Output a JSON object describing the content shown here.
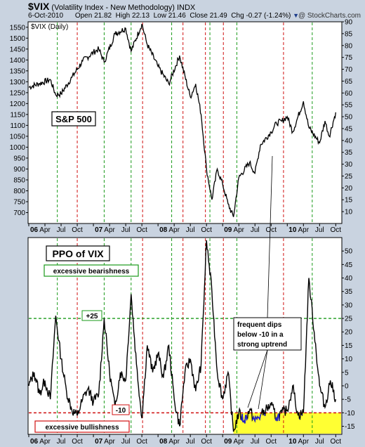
{
  "header": {
    "symbol": "$VIX",
    "name": "(Volatility Index - New Methodology)",
    "exchange": "INDX",
    "date": "6-Oct-2010",
    "open_label": "Open",
    "open": "21.82",
    "high_label": "High",
    "high": "22.13",
    "low_label": "Low",
    "low": "21.46",
    "close_label": "Close",
    "close": "21.49",
    "chg_label": "Chg",
    "chg": "-0.27 (-1.24%)"
  },
  "watermark": "@ StockCharts.com",
  "colors": {
    "background": "#c9d3e0",
    "panel": "#ffffff",
    "green_line": "#1a9a1a",
    "red_line": "#d01010",
    "highlight": "#ffff33",
    "vix_dips": "#2222cc"
  },
  "chart_data": [
    {
      "type": "line",
      "panel_label": "$VIX (Daily)",
      "annotation": "S&P 500",
      "left_axis_ticks": [
        700,
        750,
        800,
        850,
        900,
        950,
        1000,
        1050,
        1100,
        1150,
        1200,
        1250,
        1300,
        1350,
        1400,
        1450,
        1500,
        1550
      ],
      "right_axis_ticks": [
        10,
        15,
        20,
        25,
        30,
        35,
        40,
        45,
        50,
        55,
        60,
        65,
        70,
        75,
        80,
        85,
        90
      ],
      "left_ylim": [
        650,
        1575
      ],
      "right_ylim": [
        5,
        90
      ],
      "x_ticks": [
        "06",
        "Apr",
        "Jul",
        "Oct",
        "07",
        "Apr",
        "Jul",
        "Oct",
        "08",
        "Apr",
        "Jul",
        "Oct",
        "09",
        "Apr",
        "Jul",
        "Oct",
        "10",
        "Apr",
        "Jul",
        "Oct"
      ],
      "series": [
        {
          "points": [
            [
              "2006-01",
              1275
            ],
            [
              "2006-03",
              1292
            ],
            [
              "2006-05",
              1310
            ],
            [
              "2006-06",
              1240
            ],
            [
              "2006-07",
              1245
            ],
            [
              "2006-09",
              1320
            ],
            [
              "2006-11",
              1395
            ],
            [
              "2007-01",
              1435
            ],
            [
              "2007-02",
              1450
            ],
            [
              "2007-03",
              1390
            ],
            [
              "2007-05",
              1520
            ],
            [
              "2007-07",
              1545
            ],
            [
              "2007-08",
              1440
            ],
            [
              "2007-10",
              1565
            ],
            [
              "2007-11",
              1470
            ],
            [
              "2008-01",
              1370
            ],
            [
              "2008-03",
              1290
            ],
            [
              "2008-05",
              1420
            ],
            [
              "2008-07",
              1230
            ],
            [
              "2008-08",
              1290
            ],
            [
              "2008-09",
              1150
            ],
            [
              "2008-10",
              900
            ],
            [
              "2008-11",
              760
            ],
            [
              "2008-12",
              900
            ],
            [
              "2009-01",
              830
            ],
            [
              "2009-02",
              740
            ],
            [
              "2009-03",
              680
            ],
            [
              "2009-04",
              860
            ],
            [
              "2009-06",
              930
            ],
            [
              "2009-07",
              880
            ],
            [
              "2009-08",
              1010
            ],
            [
              "2009-10",
              1070
            ],
            [
              "2009-11",
              1110
            ],
            [
              "2009-12",
              1120
            ],
            [
              "2010-01",
              1140
            ],
            [
              "2010-02",
              1070
            ],
            [
              "2010-04",
              1210
            ],
            [
              "2010-05",
              1090
            ],
            [
              "2010-07",
              1020
            ],
            [
              "2010-08",
              1120
            ],
            [
              "2010-08-25",
              1050
            ],
            [
              "2010-10",
              1160
            ]
          ]
        }
      ]
    },
    {
      "type": "line",
      "title": "PPO of VIX",
      "y_ticks": [
        -15,
        -10,
        -5,
        0,
        5,
        10,
        15,
        20,
        25,
        30,
        35,
        40,
        45,
        50
      ],
      "ylim": [
        -18,
        55
      ],
      "x_ticks": [
        "06",
        "Apr",
        "Jul",
        "Oct",
        "07",
        "Apr",
        "Jul",
        "Oct",
        "08",
        "Apr",
        "Jul",
        "Oct",
        "09",
        "Apr",
        "Jul",
        "Oct",
        "10",
        "Apr",
        "Jul",
        "Oct"
      ],
      "upper_threshold": 25,
      "upper_label": "+25",
      "lower_threshold": -10,
      "lower_label": "-10",
      "upper_annotation": "excessive bearishness",
      "lower_annotation": "excessive bullishness",
      "callout": [
        "frequent dips",
        "below -10 in a",
        "strong uptrend"
      ],
      "series": [
        {
          "points": [
            [
              "2006-01",
              0
            ],
            [
              "2006-02",
              5
            ],
            [
              "2006-03",
              -3
            ],
            [
              "2006-04",
              2
            ],
            [
              "2006-05",
              -5
            ],
            [
              "2006-06",
              26
            ],
            [
              "2006-07",
              10
            ],
            [
              "2006-08",
              -2
            ],
            [
              "2006-09",
              -9
            ],
            [
              "2006-10",
              -11
            ],
            [
              "2006-11",
              -5
            ],
            [
              "2006-12",
              -1
            ],
            [
              "2007-01",
              -6
            ],
            [
              "2007-02",
              -3
            ],
            [
              "2007-03",
              25
            ],
            [
              "2007-04",
              5
            ],
            [
              "2007-05",
              -8
            ],
            [
              "2007-06",
              5
            ],
            [
              "2007-07",
              2
            ],
            [
              "2007-08",
              34
            ],
            [
              "2007-09",
              8
            ],
            [
              "2007-10",
              -12
            ],
            [
              "2007-11",
              15
            ],
            [
              "2007-12",
              5
            ],
            [
              "2008-01",
              12
            ],
            [
              "2008-02",
              3
            ],
            [
              "2008-03",
              15
            ],
            [
              "2008-04",
              -5
            ],
            [
              "2008-05",
              -15
            ],
            [
              "2008-06",
              5
            ],
            [
              "2008-07",
              10
            ],
            [
              "2008-08",
              -2
            ],
            [
              "2008-09",
              8
            ],
            [
              "2008-10",
              54
            ],
            [
              "2008-11",
              35
            ],
            [
              "2008-12",
              5
            ],
            [
              "2009-01",
              -5
            ],
            [
              "2009-02",
              5
            ],
            [
              "2009-03",
              -17
            ],
            [
              "2009-04",
              -10
            ],
            [
              "2009-05",
              -13
            ],
            [
              "2009-06",
              -9
            ],
            [
              "2009-07",
              -13
            ],
            [
              "2009-08",
              -11
            ],
            [
              "2009-09",
              -9
            ],
            [
              "2009-10",
              -7
            ],
            [
              "2009-11",
              -12
            ],
            [
              "2009-12",
              -10
            ],
            [
              "2010-01",
              -9
            ],
            [
              "2010-02",
              0
            ],
            [
              "2010-03",
              -11
            ],
            [
              "2010-04",
              -10
            ],
            [
              "2010-05",
              40
            ],
            [
              "2010-06",
              20
            ],
            [
              "2010-07",
              0
            ],
            [
              "2010-08",
              -8
            ],
            [
              "2010-09",
              2
            ],
            [
              "2010-10",
              -5
            ]
          ]
        }
      ]
    }
  ]
}
